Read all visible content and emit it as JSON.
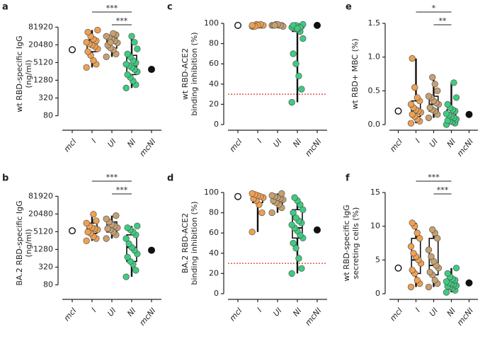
{
  "chart_data": [
    {
      "type": "box",
      "panel": "a",
      "ylabel": [
        "wt RBD-specific IgG",
        "(ng/ml)"
      ],
      "log_scale": true,
      "ylim": [
        40,
        110000
      ],
      "yticks": [
        80,
        320,
        1280,
        5120,
        20480,
        81920
      ],
      "groups": [
        {
          "name": "mcI",
          "color": "#ffffff",
          "points": [
            14000
          ]
        },
        {
          "name": "I",
          "color": "#f0a050",
          "points": [
            3500,
            4500,
            6000,
            9000,
            12000,
            15000,
            18000,
            20000,
            22000,
            25000,
            28000,
            32000,
            40000,
            55000,
            65000
          ],
          "box": [
            3500,
            12000,
            20000,
            30000,
            65000
          ]
        },
        {
          "name": "UI",
          "color": "#c8a070",
          "points": [
            8000,
            10000,
            14000,
            16000,
            20000,
            24000,
            28000,
            32000,
            36000,
            40000,
            45000,
            50000,
            25000
          ],
          "box": [
            8000,
            16000,
            26000,
            38000,
            50000
          ]
        },
        {
          "name": "NI",
          "color": "#3dcc80",
          "points": [
            700,
            900,
            1200,
            1600,
            2000,
            2500,
            3000,
            3500,
            4000,
            4500,
            5000,
            6000,
            8000,
            10000,
            15000,
            25000,
            40000
          ],
          "box": [
            700,
            2000,
            4000,
            9000,
            40000
          ]
        },
        {
          "name": "mcNI",
          "color": "#111111",
          "points": [
            3000
          ]
        }
      ],
      "significance": [
        {
          "between": [
            "I",
            "NI"
          ],
          "label": "***"
        },
        {
          "between": [
            "UI",
            "NI"
          ],
          "label": "***"
        }
      ]
    },
    {
      "type": "box",
      "panel": "b",
      "ylabel": [
        "BA.2 RBD-specific IgG",
        "(ng/ml)"
      ],
      "log_scale": true,
      "ylim": [
        40,
        110000
      ],
      "yticks": [
        80,
        320,
        1280,
        5120,
        20480,
        81920
      ],
      "groups": [
        {
          "name": "mcI",
          "color": "#ffffff",
          "points": [
            5500
          ]
        },
        {
          "name": "I",
          "color": "#f0a050",
          "points": [
            2500,
            3000,
            3500,
            4500,
            5000,
            6000,
            6500,
            7000,
            8000,
            10000,
            12000,
            20000
          ],
          "box": [
            2500,
            4500,
            6500,
            10000,
            20000
          ]
        },
        {
          "name": "UI",
          "color": "#c8a070",
          "points": [
            3000,
            4000,
            5000,
            6000,
            6500,
            7000,
            8000,
            9000,
            11000,
            14000,
            18000
          ],
          "box": [
            3000,
            5000,
            7000,
            11000,
            18000
          ]
        },
        {
          "name": "NI",
          "color": "#3dcc80",
          "points": [
            150,
            250,
            400,
            500,
            700,
            900,
            1200,
            1500,
            2000,
            3000,
            4000,
            5000,
            6000,
            7000,
            8000
          ],
          "box": [
            150,
            500,
            1500,
            4000,
            8000
          ]
        },
        {
          "name": "mcNI",
          "color": "#111111",
          "points": [
            1200
          ]
        }
      ],
      "significance": [
        {
          "between": [
            "I",
            "NI"
          ],
          "label": "***"
        },
        {
          "between": [
            "UI",
            "NI"
          ],
          "label": "***"
        }
      ]
    },
    {
      "type": "box",
      "panel": "c",
      "ylabel": [
        "wt RBD-ACE2",
        "binding inhibition (%)"
      ],
      "ylim": [
        0,
        100
      ],
      "yticks": [
        0,
        20,
        40,
        60,
        80,
        100
      ],
      "reference_line": {
        "value": 30,
        "color": "#e03030"
      },
      "groups": [
        {
          "name": "mcI",
          "color": "#ffffff",
          "points": [
            98
          ]
        },
        {
          "name": "I",
          "color": "#f0a050",
          "points": [
            97,
            98,
            98,
            99,
            97,
            98,
            99,
            98,
            97,
            98
          ],
          "box": [
            97,
            97.5,
            98,
            98.5,
            99
          ]
        },
        {
          "name": "UI",
          "color": "#c8a070",
          "points": [
            98,
            98,
            98,
            99,
            98,
            97,
            98,
            99,
            98
          ],
          "box": [
            97,
            98,
            98,
            98.5,
            99
          ]
        },
        {
          "name": "NI",
          "color": "#3dcc80",
          "points": [
            22,
            35,
            48,
            60,
            70,
            85,
            92,
            94,
            95,
            96,
            97,
            97,
            98,
            98,
            99,
            96,
            95
          ],
          "box": [
            22,
            92,
            96,
            98,
            99
          ]
        },
        {
          "name": "mcNI",
          "color": "#111111",
          "points": [
            98
          ]
        }
      ]
    },
    {
      "type": "box",
      "panel": "d",
      "ylabel": [
        "BA.2 RBD-ACE2",
        "binding inhibition (%)"
      ],
      "ylim": [
        0,
        100
      ],
      "yticks": [
        0,
        20,
        40,
        60,
        80,
        100
      ],
      "reference_line": {
        "value": 30,
        "color": "#e03030"
      },
      "groups": [
        {
          "name": "mcI",
          "color": "#ffffff",
          "points": [
            96
          ]
        },
        {
          "name": "I",
          "color": "#f0a050",
          "points": [
            61,
            80,
            88,
            92,
            94,
            95,
            96,
            97,
            98,
            99
          ],
          "box": [
            61,
            90,
            95,
            97,
            99
          ]
        },
        {
          "name": "UI",
          "color": "#c8a070",
          "points": [
            80,
            85,
            88,
            90,
            92,
            93,
            94,
            95,
            96,
            97,
            99
          ],
          "box": [
            80,
            89,
            93,
            96,
            99
          ]
        },
        {
          "name": "NI",
          "color": "#3dcc80",
          "points": [
            20,
            25,
            35,
            45,
            50,
            55,
            58,
            62,
            65,
            68,
            70,
            72,
            75,
            80,
            83,
            88,
            92,
            95
          ],
          "box": [
            20,
            55,
            65,
            83,
            95
          ]
        },
        {
          "name": "mcNI",
          "color": "#111111",
          "points": [
            63
          ]
        }
      ]
    },
    {
      "type": "box",
      "panel": "e",
      "ylabel": [
        "wt RBD+ MBC (%)"
      ],
      "ylim": [
        0,
        1.5
      ],
      "yticks": [
        {
          "value": 0,
          "label": "0.0"
        },
        0.5,
        {
          "value": 1,
          "label": "1.0"
        },
        1.5
      ],
      "groups": [
        {
          "name": "mcI",
          "color": "#ffffff",
          "points": [
            0.2
          ]
        },
        {
          "name": "I",
          "color": "#f0a050",
          "points": [
            0.02,
            0.05,
            0.08,
            0.12,
            0.15,
            0.18,
            0.2,
            0.22,
            0.25,
            0.3,
            0.35,
            0.4,
            0.55,
            0.98
          ],
          "box": [
            0.02,
            0.12,
            0.2,
            0.35,
            0.98
          ]
        },
        {
          "name": "UI",
          "color": "#c8a070",
          "points": [
            0.1,
            0.15,
            0.2,
            0.22,
            0.25,
            0.3,
            0.32,
            0.35,
            0.4,
            0.42,
            0.5,
            0.6,
            0.7
          ],
          "box": [
            0.1,
            0.2,
            0.3,
            0.42,
            0.7
          ]
        },
        {
          "name": "NI",
          "color": "#3dcc80",
          "points": [
            0,
            0.02,
            0.04,
            0.05,
            0.06,
            0.08,
            0.1,
            0.12,
            0.14,
            0.16,
            0.2,
            0.22,
            0.25,
            0.3,
            0.4,
            0.62
          ],
          "box": [
            0,
            0.05,
            0.12,
            0.22,
            0.62
          ]
        },
        {
          "name": "mcNI",
          "color": "#111111",
          "points": [
            0.15
          ]
        }
      ],
      "significance": [
        {
          "between": [
            "I",
            "NI"
          ],
          "label": "*"
        },
        {
          "between": [
            "UI",
            "NI"
          ],
          "label": "**"
        }
      ]
    },
    {
      "type": "box",
      "panel": "f",
      "ylabel": [
        "wt RBD-specific IgG",
        "secreting cells (%)"
      ],
      "ylim": [
        0,
        15
      ],
      "yticks": [
        0,
        5,
        10,
        15
      ],
      "groups": [
        {
          "name": "mcI",
          "color": "#ffffff",
          "points": [
            3.8
          ]
        },
        {
          "name": "I",
          "color": "#f0a050",
          "points": [
            1,
            1.5,
            2,
            3,
            3.5,
            4.5,
            5,
            5.5,
            6,
            7,
            8.2,
            9,
            10,
            10.5
          ],
          "box": [
            1,
            3,
            5,
            8.2,
            10.5
          ]
        },
        {
          "name": "UI",
          "color": "#c8a070",
          "points": [
            1,
            1.5,
            2,
            2.8,
            3.2,
            3.8,
            4.2,
            4.8,
            5.5,
            6.5,
            8.2,
            9,
            9.5
          ],
          "box": [
            1,
            2.8,
            4.2,
            8.2,
            9.5
          ]
        },
        {
          "name": "NI",
          "color": "#3dcc80",
          "points": [
            0.2,
            0.5,
            0.8,
            1,
            1.1,
            1.2,
            1.4,
            1.5,
            1.6,
            1.8,
            2,
            2.2,
            2.5,
            3,
            3.8
          ],
          "box": [
            0.2,
            1,
            1.5,
            2.2,
            3.8
          ]
        },
        {
          "name": "mcNI",
          "color": "#111111",
          "points": [
            1.6
          ]
        }
      ],
      "significance": [
        {
          "between": [
            "I",
            "NI"
          ],
          "label": "***"
        },
        {
          "between": [
            "UI",
            "NI"
          ],
          "label": "***"
        }
      ]
    }
  ]
}
